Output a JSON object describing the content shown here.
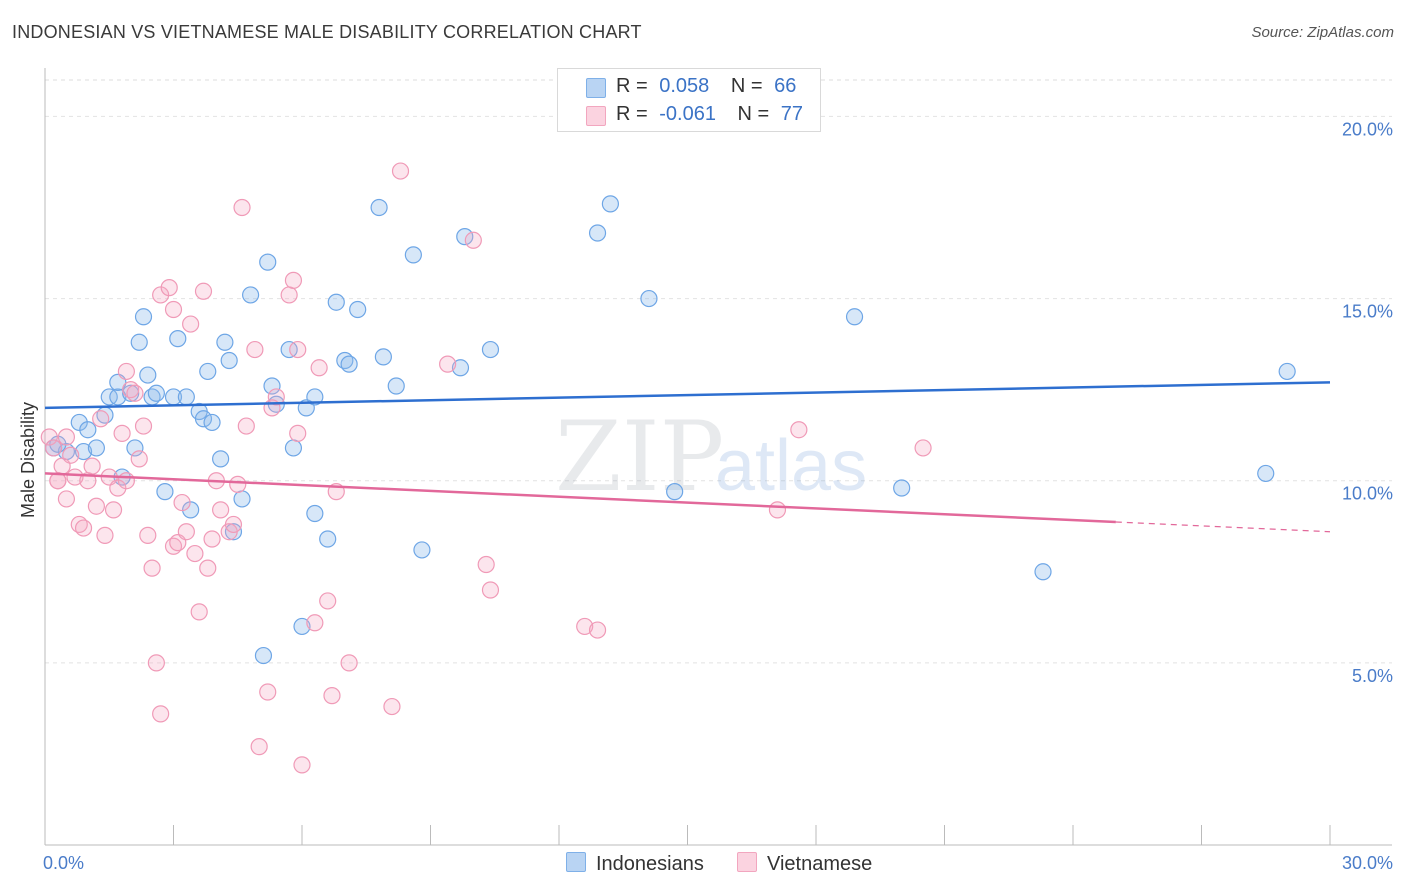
{
  "header": {
    "title": "INDONESIAN VS VIETNAMESE MALE DISABILITY CORRELATION CHART",
    "source": "Source: ZipAtlas.com"
  },
  "legend": {
    "r_label": "R =",
    "n_label": "N =",
    "rows": [
      {
        "r": "0.058",
        "n": "66",
        "color": "#7fb0e8"
      },
      {
        "r": "-0.061",
        "n": "77",
        "color": "#f2a6bf"
      }
    ]
  },
  "colors": {
    "blue": "#6ea6e6",
    "pink": "#f09ab7",
    "blue_line": "#2e6fd0",
    "pink_line": "#e2689a"
  },
  "chart_data": {
    "type": "scatter",
    "title": "INDONESIAN VS VIETNAMESE MALE DISABILITY CORRELATION CHART",
    "xlabel": "",
    "ylabel": "Male Disability",
    "xlim": [
      0,
      30
    ],
    "ylim": [
      0,
      21
    ],
    "x_tick_labels": [
      "0.0%",
      "30.0%"
    ],
    "y_ticks": [
      5,
      10,
      15,
      20
    ],
    "y_tick_labels": [
      "5.0%",
      "10.0%",
      "15.0%",
      "20.0%"
    ],
    "watermark": [
      "ZIP",
      "atlas"
    ],
    "series": [
      {
        "name": "Indonesians",
        "r": 0.058,
        "n": 66,
        "trend": {
          "x0": 0,
          "y0": 12.0,
          "x1": 30,
          "y1": 12.7,
          "solid_to": 30
        },
        "points": [
          [
            0.2,
            10.9
          ],
          [
            0.5,
            10.8
          ],
          [
            0.3,
            11.0
          ],
          [
            0.8,
            11.6
          ],
          [
            1.0,
            11.4
          ],
          [
            0.9,
            10.8
          ],
          [
            1.2,
            10.9
          ],
          [
            1.5,
            12.3
          ],
          [
            1.7,
            12.3
          ],
          [
            1.8,
            10.1
          ],
          [
            1.4,
            11.8
          ],
          [
            1.7,
            12.7
          ],
          [
            2.0,
            12.4
          ],
          [
            2.1,
            10.9
          ],
          [
            2.2,
            13.8
          ],
          [
            2.3,
            14.5
          ],
          [
            2.4,
            12.9
          ],
          [
            2.5,
            12.3
          ],
          [
            2.6,
            12.4
          ],
          [
            2.8,
            9.7
          ],
          [
            3.0,
            12.3
          ],
          [
            3.1,
            13.9
          ],
          [
            3.3,
            12.3
          ],
          [
            3.4,
            9.2
          ],
          [
            3.6,
            11.9
          ],
          [
            3.7,
            11.7
          ],
          [
            3.8,
            13.0
          ],
          [
            3.9,
            11.6
          ],
          [
            4.1,
            10.6
          ],
          [
            4.2,
            13.8
          ],
          [
            4.3,
            13.3
          ],
          [
            4.4,
            8.6
          ],
          [
            4.6,
            9.5
          ],
          [
            4.8,
            15.1
          ],
          [
            5.1,
            5.2
          ],
          [
            5.2,
            16.0
          ],
          [
            5.3,
            12.6
          ],
          [
            5.4,
            12.1
          ],
          [
            5.7,
            13.6
          ],
          [
            5.8,
            10.9
          ],
          [
            6.0,
            6.0
          ],
          [
            6.1,
            12.0
          ],
          [
            6.3,
            12.3
          ],
          [
            6.3,
            9.1
          ],
          [
            6.6,
            8.4
          ],
          [
            6.8,
            14.9
          ],
          [
            7.0,
            13.3
          ],
          [
            7.1,
            13.2
          ],
          [
            7.3,
            14.7
          ],
          [
            7.8,
            17.5
          ],
          [
            7.9,
            13.4
          ],
          [
            8.2,
            12.6
          ],
          [
            8.6,
            16.2
          ],
          [
            8.8,
            8.1
          ],
          [
            9.7,
            13.1
          ],
          [
            9.8,
            16.7
          ],
          [
            10.4,
            13.6
          ],
          [
            12.9,
            16.8
          ],
          [
            13.2,
            17.6
          ],
          [
            14.1,
            15.0
          ],
          [
            14.7,
            9.7
          ],
          [
            18.9,
            14.5
          ],
          [
            20.0,
            9.8
          ],
          [
            23.3,
            7.5
          ],
          [
            28.5,
            10.2
          ],
          [
            29.0,
            13.0
          ]
        ]
      },
      {
        "name": "Vietnamese",
        "r": -0.061,
        "n": 77,
        "trend": {
          "x0": 0,
          "y0": 10.2,
          "x1": 30,
          "y1": 8.6,
          "solid_to": 25
        },
        "points": [
          [
            0.1,
            11.2
          ],
          [
            0.2,
            10.9
          ],
          [
            0.3,
            10.0
          ],
          [
            0.4,
            10.4
          ],
          [
            0.5,
            9.5
          ],
          [
            0.5,
            11.2
          ],
          [
            0.6,
            10.7
          ],
          [
            0.7,
            10.1
          ],
          [
            0.8,
            8.8
          ],
          [
            0.9,
            8.7
          ],
          [
            1.0,
            10.0
          ],
          [
            1.1,
            10.4
          ],
          [
            1.2,
            9.3
          ],
          [
            1.3,
            11.7
          ],
          [
            1.4,
            8.5
          ],
          [
            1.5,
            10.1
          ],
          [
            1.6,
            9.2
          ],
          [
            1.7,
            9.8
          ],
          [
            1.8,
            11.3
          ],
          [
            1.9,
            13.0
          ],
          [
            1.9,
            10.0
          ],
          [
            2.0,
            12.5
          ],
          [
            2.1,
            12.4
          ],
          [
            2.2,
            10.6
          ],
          [
            2.3,
            11.5
          ],
          [
            2.4,
            8.5
          ],
          [
            2.5,
            7.6
          ],
          [
            2.6,
            5.0
          ],
          [
            2.7,
            15.1
          ],
          [
            2.7,
            3.6
          ],
          [
            2.9,
            15.3
          ],
          [
            3.0,
            14.7
          ],
          [
            3.0,
            8.2
          ],
          [
            3.1,
            8.3
          ],
          [
            3.2,
            9.4
          ],
          [
            3.3,
            8.6
          ],
          [
            3.4,
            14.3
          ],
          [
            3.5,
            8.0
          ],
          [
            3.6,
            6.4
          ],
          [
            3.7,
            15.2
          ],
          [
            3.8,
            7.6
          ],
          [
            3.9,
            8.4
          ],
          [
            4.0,
            10.0
          ],
          [
            4.1,
            9.2
          ],
          [
            4.3,
            8.6
          ],
          [
            4.4,
            8.8
          ],
          [
            4.5,
            9.9
          ],
          [
            4.6,
            17.5
          ],
          [
            4.7,
            11.5
          ],
          [
            4.9,
            13.6
          ],
          [
            5.0,
            2.7
          ],
          [
            5.2,
            4.2
          ],
          [
            5.3,
            12.0
          ],
          [
            5.4,
            12.3
          ],
          [
            5.7,
            15.1
          ],
          [
            5.8,
            15.5
          ],
          [
            5.9,
            11.3
          ],
          [
            5.9,
            13.6
          ],
          [
            6.0,
            2.2
          ],
          [
            6.3,
            6.1
          ],
          [
            6.4,
            13.1
          ],
          [
            6.6,
            6.7
          ],
          [
            6.7,
            4.1
          ],
          [
            6.8,
            9.7
          ],
          [
            7.1,
            5.0
          ],
          [
            8.1,
            3.8
          ],
          [
            8.3,
            18.5
          ],
          [
            9.4,
            13.2
          ],
          [
            10.0,
            16.6
          ],
          [
            10.3,
            7.7
          ],
          [
            10.4,
            7.0
          ],
          [
            12.6,
            6.0
          ],
          [
            12.9,
            5.9
          ],
          [
            17.1,
            9.2
          ],
          [
            17.6,
            11.4
          ],
          [
            20.5,
            10.9
          ],
          [
            0.3,
            10.0
          ]
        ]
      }
    ]
  },
  "bottom_legend": [
    {
      "label": "Indonesians"
    },
    {
      "label": "Vietnamese"
    }
  ]
}
